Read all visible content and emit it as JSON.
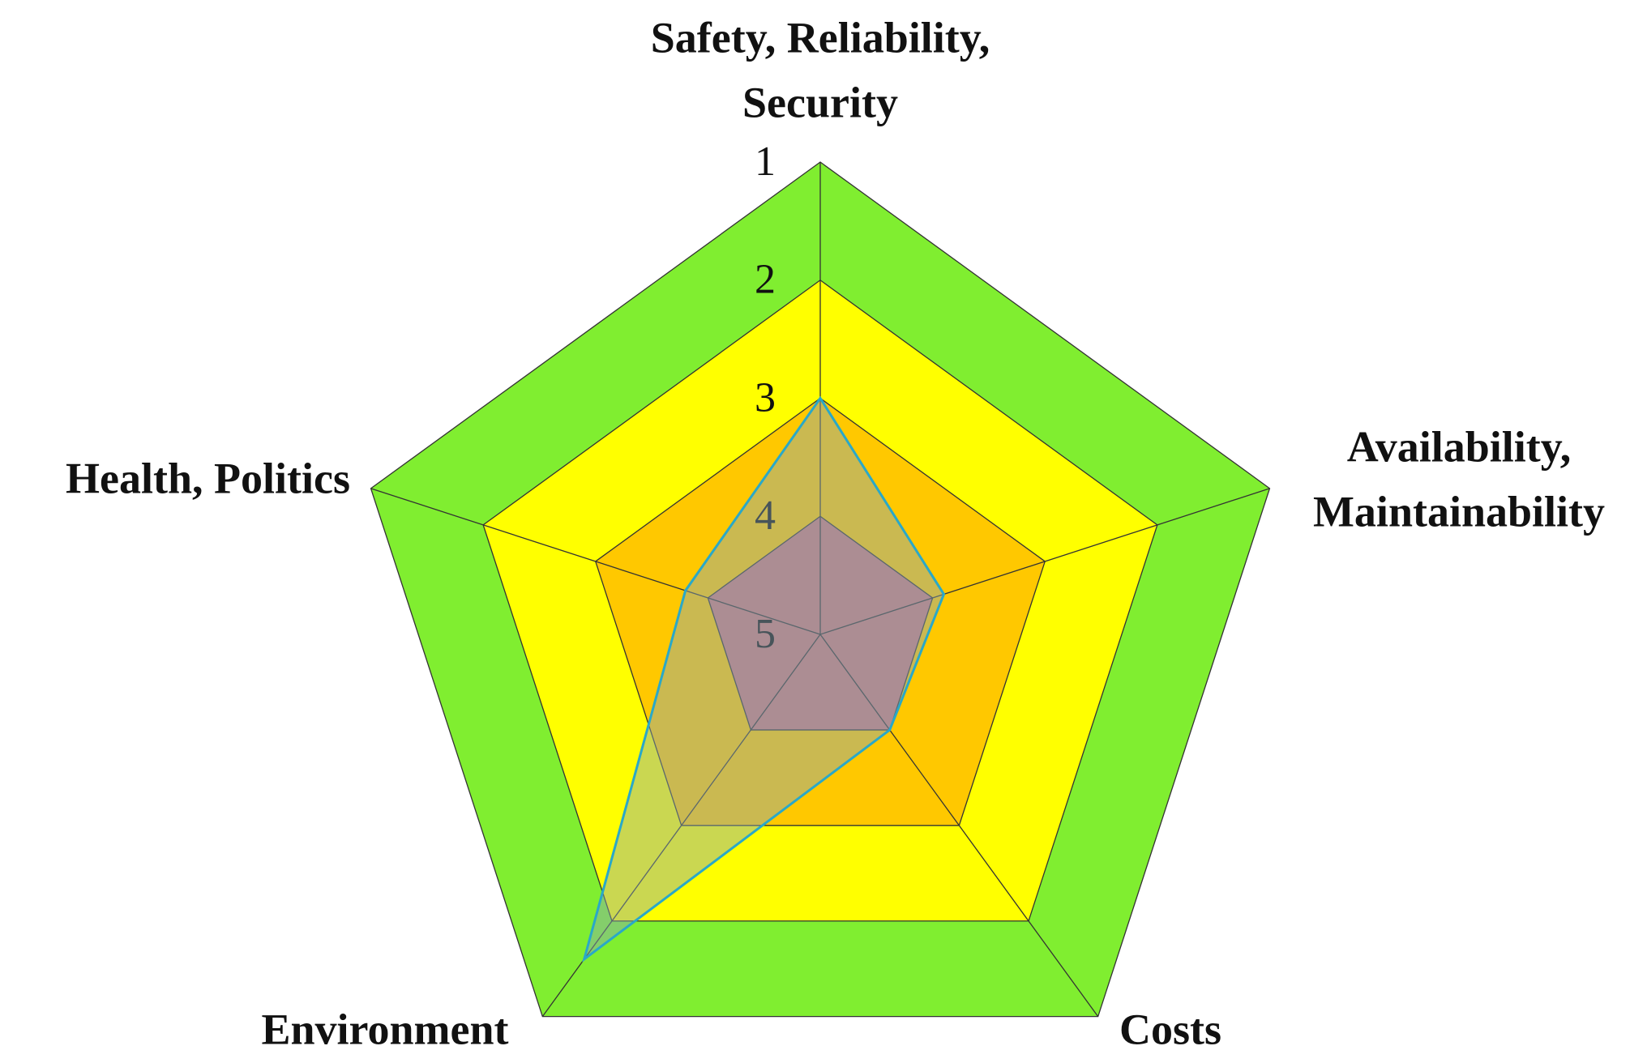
{
  "chart_data": {
    "type": "radar",
    "categories": [
      [
        "Safety, Reliability,",
        "Security"
      ],
      [
        "Availability,",
        "Maintainability"
      ],
      [
        "Costs"
      ],
      [
        "Environment"
      ],
      [
        "Health, Politics"
      ]
    ],
    "rlim": [
      5,
      1
    ],
    "rticks": [
      1,
      2,
      3,
      4,
      5
    ],
    "band_colors": [
      "#80ee30",
      "#ffff00",
      "#ffc800",
      "#c87878"
    ],
    "series": [
      {
        "color": "#2aa8c8",
        "values": [
          3,
          3.9,
          4,
          1.6,
          3.8
        ]
      }
    ]
  }
}
